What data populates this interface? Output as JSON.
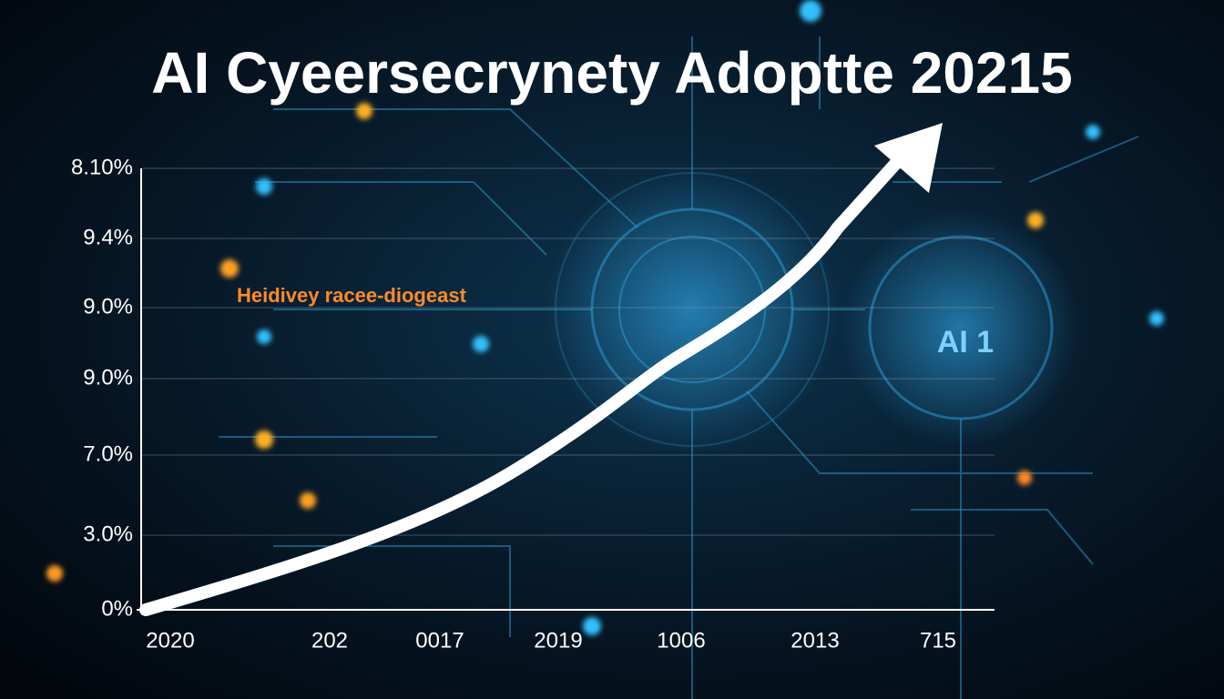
{
  "title": "AI Cyeersecrynety Adoptte 20215",
  "y_axis_labels": [
    "8.10%",
    "9.4%",
    "9.0%",
    "9.0%",
    "7.0%",
    "3.0%",
    "0%"
  ],
  "x_axis_labels": [
    "2020",
    "202",
    "0017",
    "2019",
    "1006",
    "2013",
    "715"
  ],
  "annotation": "Heidivey racee-diogeast",
  "badge": "AI 1"
}
